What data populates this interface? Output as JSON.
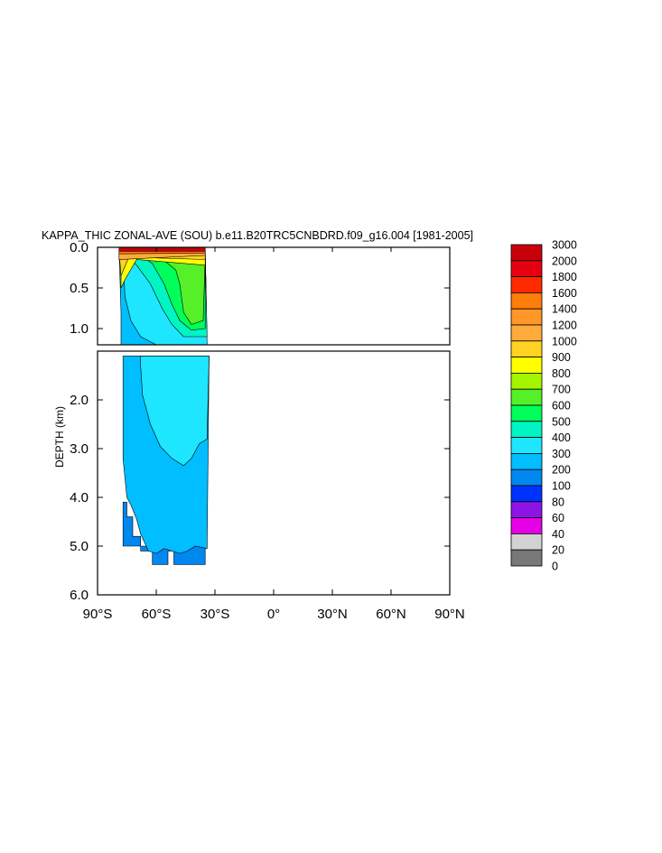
{
  "chart_data": {
    "type": "heatmap",
    "title": "KAPPA_THIC ZONAL-AVE (SOU) b.e11.B20TRC5CNBDRD.f09_g16.004 [1981-2005]",
    "ylabel": "DEPTH (km)",
    "x_ticks": [
      {
        "value": -90,
        "label": "90°S"
      },
      {
        "value": -60,
        "label": "60°S"
      },
      {
        "value": -30,
        "label": "30°S"
      },
      {
        "value": 0,
        "label": "0°"
      },
      {
        "value": 30,
        "label": "30°N"
      },
      {
        "value": 60,
        "label": "60°N"
      },
      {
        "value": 90,
        "label": "90°N"
      }
    ],
    "xlim": [
      -90,
      90
    ],
    "upper_panel": {
      "ylim": [
        0,
        1.2
      ],
      "y_ticks": [
        {
          "value": 0.0,
          "label": "0.0"
        },
        {
          "value": 0.5,
          "label": "0.5"
        },
        {
          "value": 1.0,
          "label": "1.0"
        }
      ]
    },
    "lower_panel": {
      "ylim": [
        1.0,
        6.0
      ],
      "y_ticks": [
        {
          "value": 2.0,
          "label": "2.0"
        },
        {
          "value": 3.0,
          "label": "3.0"
        },
        {
          "value": 4.0,
          "label": "4.0"
        },
        {
          "value": 5.0,
          "label": "5.0"
        },
        {
          "value": 6.0,
          "label": "6.0"
        }
      ]
    },
    "colorbar": {
      "levels": [
        {
          "label": "3000",
          "color": "#c8000a"
        },
        {
          "label": "2000",
          "color": "#e6000f"
        },
        {
          "label": "1800",
          "color": "#ff2a00"
        },
        {
          "label": "1600",
          "color": "#ff7d0a"
        },
        {
          "label": "1400",
          "color": "#ff9628"
        },
        {
          "label": "1200",
          "color": "#ffaa3c"
        },
        {
          "label": "1000",
          "color": "#ffd223"
        },
        {
          "label": "900",
          "color": "#ffff00"
        },
        {
          "label": "800",
          "color": "#a5f500"
        },
        {
          "label": "700",
          "color": "#55f028"
        },
        {
          "label": "600",
          "color": "#00ff5a"
        },
        {
          "label": "500",
          "color": "#00f5c3"
        },
        {
          "label": "400",
          "color": "#1ee6ff"
        },
        {
          "label": "300",
          "color": "#00beff"
        },
        {
          "label": "200",
          "color": "#0087f0"
        },
        {
          "label": "100",
          "color": "#0032ff"
        },
        {
          "label": "80",
          "color": "#8c14e6"
        },
        {
          "label": "60",
          "color": "#e600e6"
        },
        {
          "label": "40",
          "color": "#d2d2d2"
        },
        {
          "label": "20",
          "color": "#787878"
        },
        {
          "label": "0",
          "color": ""
        }
      ]
    },
    "regions": [
      {
        "name": "deep-200",
        "value": 200,
        "color": "#0087f0",
        "points": [
          [
            -77,
            4.1
          ],
          [
            -75,
            4.1
          ],
          [
            -75,
            4.4
          ],
          [
            -72,
            4.4
          ],
          [
            -72,
            4.8
          ],
          [
            -68,
            4.8
          ],
          [
            -68,
            5.1
          ],
          [
            -62,
            5.1
          ],
          [
            -62,
            5.38
          ],
          [
            -54,
            5.38
          ],
          [
            -54,
            5.1
          ],
          [
            -51,
            5.1
          ],
          [
            -51,
            5.38
          ],
          [
            -35,
            5.38
          ],
          [
            -35,
            5.0
          ],
          [
            -77,
            5.0
          ]
        ]
      },
      {
        "name": "lower-300",
        "value": 300,
        "color": "#00beff",
        "points": [
          [
            -77,
            1.1
          ],
          [
            -33,
            1.1
          ],
          [
            -34,
            5.05
          ],
          [
            -40,
            5.0
          ],
          [
            -44,
            5.1
          ],
          [
            -48,
            5.15
          ],
          [
            -52,
            5.1
          ],
          [
            -56,
            5.05
          ],
          [
            -60,
            5.15
          ],
          [
            -64,
            5.1
          ],
          [
            -68,
            4.75
          ],
          [
            -70,
            4.45
          ],
          [
            -73,
            4.15
          ],
          [
            -75,
            4.0
          ],
          [
            -77,
            3.2
          ]
        ]
      },
      {
        "name": "lower-400",
        "value": 400,
        "color": "#1ee6ff",
        "points": [
          [
            -68,
            1.1
          ],
          [
            -33,
            1.1
          ],
          [
            -34,
            2.8
          ],
          [
            -38,
            2.9
          ],
          [
            -42,
            3.2
          ],
          [
            -46,
            3.35
          ],
          [
            -52,
            3.2
          ],
          [
            -58,
            2.95
          ],
          [
            -63,
            2.5
          ],
          [
            -67,
            1.9
          ],
          [
            -68,
            1.3
          ]
        ]
      },
      {
        "name": "upper-300",
        "value": 300,
        "color": "#00beff",
        "points": [
          [
            -79,
            0.0
          ],
          [
            -35,
            0.0
          ],
          [
            -34,
            1.2
          ],
          [
            -78,
            1.2
          ],
          [
            -78,
            0.8
          ]
        ]
      },
      {
        "name": "upper-400",
        "value": 400,
        "color": "#1ee6ff",
        "points": [
          [
            -77,
            0.05
          ],
          [
            -35,
            0.05
          ],
          [
            -34,
            1.2
          ],
          [
            -60,
            1.2
          ],
          [
            -68,
            1.1
          ],
          [
            -73,
            0.9
          ],
          [
            -76,
            0.6
          ]
        ]
      },
      {
        "name": "upper-500",
        "value": 500,
        "color": "#00f5c3",
        "points": [
          [
            -76,
            0.08
          ],
          [
            -35,
            0.08
          ],
          [
            -34,
            1.1
          ],
          [
            -46,
            1.1
          ],
          [
            -52,
            0.95
          ],
          [
            -57,
            0.75
          ],
          [
            -63,
            0.45
          ],
          [
            -70,
            0.22
          ]
        ]
      },
      {
        "name": "upper-600",
        "value": 600,
        "color": "#00ff5a",
        "points": [
          [
            -68,
            0.1
          ],
          [
            -35,
            0.1
          ],
          [
            -35,
            1.0
          ],
          [
            -42,
            1.02
          ],
          [
            -48,
            0.9
          ],
          [
            -52,
            0.7
          ],
          [
            -56,
            0.45
          ],
          [
            -62,
            0.2
          ]
        ]
      },
      {
        "name": "upper-700",
        "value": 700,
        "color": "#55f028",
        "points": [
          [
            -60,
            0.12
          ],
          [
            -35,
            0.12
          ],
          [
            -36,
            0.9
          ],
          [
            -42,
            0.95
          ],
          [
            -46,
            0.8
          ],
          [
            -48,
            0.45
          ],
          [
            -50,
            0.28
          ],
          [
            -56,
            0.16
          ]
        ]
      },
      {
        "name": "upper-900",
        "value": 900,
        "color": "#ffff00",
        "points": [
          [
            -78,
            0.1
          ],
          [
            -35,
            0.1
          ],
          [
            -35,
            0.22
          ],
          [
            -70,
            0.15
          ],
          [
            -76,
            0.4
          ],
          [
            -78,
            0.5
          ]
        ]
      },
      {
        "name": "upper-1000",
        "value": 1000,
        "color": "#ffd223",
        "points": [
          [
            -79,
            0.05
          ],
          [
            -35,
            0.05
          ],
          [
            -35,
            0.15
          ],
          [
            -74,
            0.12
          ],
          [
            -78,
            0.35
          ]
        ]
      },
      {
        "name": "upper-1200",
        "value": 1200,
        "color": "#ffaa3c",
        "points": [
          [
            -79,
            0.04
          ],
          [
            -35,
            0.04
          ],
          [
            -35,
            0.1
          ],
          [
            -79,
            0.15
          ]
        ]
      },
      {
        "name": "upper-1600",
        "value": 1600,
        "color": "#ff7d0a",
        "points": [
          [
            -79,
            0.03
          ],
          [
            -35,
            0.03
          ],
          [
            -35,
            0.07
          ],
          [
            -79,
            0.08
          ]
        ]
      },
      {
        "name": "upper-3000",
        "value": 3000,
        "color": "#c8000a",
        "points": [
          [
            -79,
            0.0
          ],
          [
            -35,
            0.0
          ],
          [
            -35,
            0.05
          ],
          [
            -79,
            0.05
          ]
        ]
      }
    ]
  }
}
